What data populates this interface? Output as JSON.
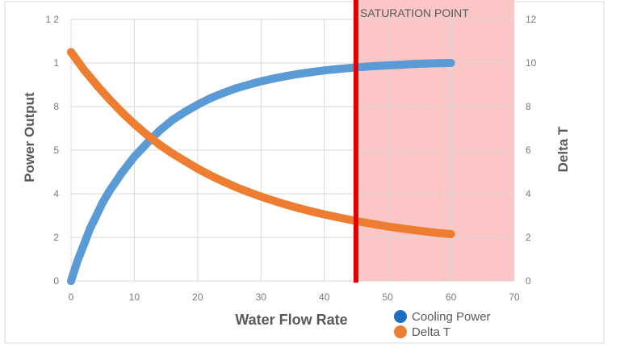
{
  "chart_data": {
    "type": "scatter",
    "xlabel": "Water Flow Rate",
    "ylabel": "Power Output",
    "ylabel_right": "Delta T",
    "xlim": [
      0,
      70
    ],
    "ylim": [
      0,
      1.2
    ],
    "ylim_right": [
      0,
      12
    ],
    "x_ticks": [
      "0",
      "10",
      "20",
      "30",
      "40",
      "50",
      "60",
      "70"
    ],
    "y_ticks": [
      "0",
      "2",
      "4",
      "5",
      "8",
      "1",
      "1 2"
    ],
    "y_ticks_right": [
      "0",
      "2",
      "4",
      "6",
      "8",
      "10",
      "12"
    ],
    "grid": true,
    "legend_position": "bottom",
    "series": [
      {
        "name": "Cooling Power",
        "axis": "left",
        "color": "#5b9bd5",
        "legend_color": "#1f6fc0",
        "x": [
          0,
          1,
          2,
          3,
          4,
          5,
          6,
          8,
          10,
          12,
          14,
          16,
          18,
          20,
          22,
          24,
          26,
          28,
          30,
          32,
          34,
          36,
          38,
          40,
          42,
          44,
          46,
          48,
          50,
          52,
          54,
          56,
          58,
          60
        ],
        "values": [
          0,
          0.09,
          0.165,
          0.24,
          0.3,
          0.36,
          0.41,
          0.495,
          0.57,
          0.632,
          0.69,
          0.738,
          0.776,
          0.809,
          0.838,
          0.862,
          0.883,
          0.9,
          0.916,
          0.929,
          0.94,
          0.95,
          0.958,
          0.966,
          0.972,
          0.977,
          0.982,
          0.986,
          0.989,
          0.992,
          0.995,
          0.997,
          0.999,
          1.0
        ]
      },
      {
        "name": "Delta T",
        "axis": "right",
        "color": "#ed7d31",
        "legend_color": "#ed7d31",
        "x": [
          0,
          2,
          4,
          6,
          8,
          10,
          12,
          14,
          16,
          18,
          20,
          22,
          24,
          26,
          28,
          30,
          32,
          34,
          36,
          38,
          40,
          42,
          44,
          46,
          48,
          50,
          52,
          54,
          56,
          58,
          60
        ],
        "values": [
          10.5,
          9.7,
          9.0,
          8.35,
          7.75,
          7.2,
          6.7,
          6.25,
          5.85,
          5.5,
          5.15,
          4.85,
          4.57,
          4.31,
          4.08,
          3.87,
          3.68,
          3.5,
          3.34,
          3.19,
          3.05,
          2.93,
          2.81,
          2.7,
          2.6,
          2.5,
          2.42,
          2.34,
          2.27,
          2.2,
          2.15
        ]
      }
    ],
    "saturation": {
      "x": 45,
      "label": "SATURATION POINT",
      "region_end": 70,
      "line_color": "#e00000",
      "region_color": "#fcc6c6"
    }
  }
}
